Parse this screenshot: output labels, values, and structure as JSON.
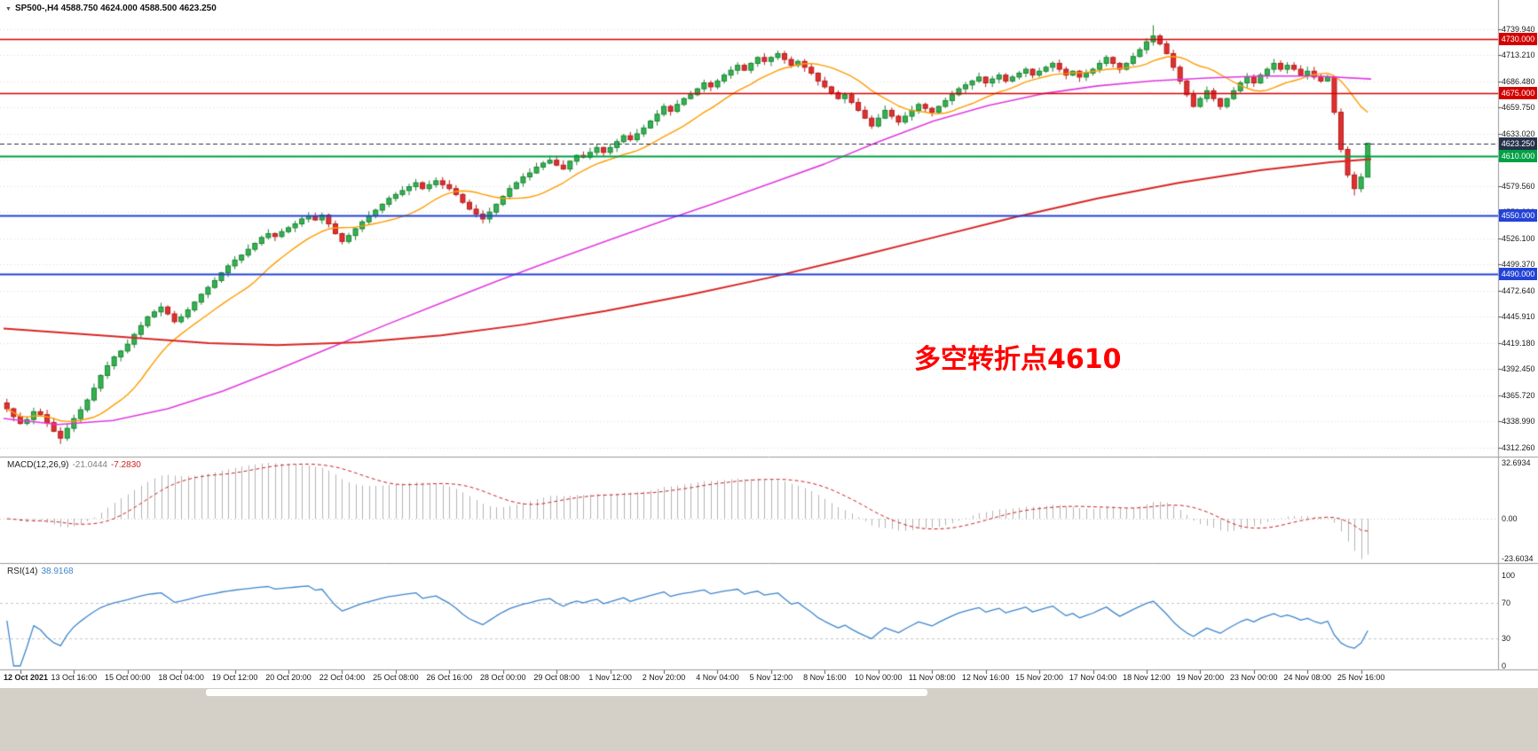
{
  "window": {
    "title_text": "SP500-,H4 4588.750 4624.000 4588.500 4623.250",
    "symbol": "SP500-",
    "timeframe": "H4",
    "ohlc": {
      "open": "4588.750",
      "high": "4624.000",
      "low": "4588.500",
      "close": "4623.250"
    }
  },
  "icons": {
    "dropdown": "▼"
  },
  "annotation": {
    "text": "多空转折点4610",
    "color": "#ff0000"
  },
  "indicators": {
    "macd": {
      "name": "MACD(12,26,9)",
      "value_main": "-21.0444",
      "value_signal": "-7.2830",
      "axis_labels": [
        "32.6934",
        "0.00",
        "-23.6034"
      ]
    },
    "rsi": {
      "name": "RSI(14)",
      "value": "38.9168",
      "axis_labels": [
        "100",
        "70",
        "30",
        "0"
      ]
    }
  },
  "colors": {
    "up_fill": "#33b34e",
    "up_edge": "#1e8238",
    "down_fill": "#e03030",
    "down_edge": "#b31d1d",
    "ma_fast": "#ff9c00",
    "ma_mid": "#e03ae0",
    "ma_slow": "#d92525",
    "macd_hist": "#b4b4b4",
    "macd_signal": "#cc2222",
    "rsi_line": "#3e86cc",
    "grid": "#dcdcdc",
    "separator": "#9a9a9a",
    "axis_text": "#1a1a1a"
  },
  "chart_data": {
    "type": "candlestick",
    "title": "SP500-,H4",
    "panels": [
      "price",
      "MACD",
      "RSI"
    ],
    "last_bar": {
      "open": 4588.75,
      "high": 4624.0,
      "low": 4588.5,
      "close": 4623.25
    },
    "first_open": 4358,
    "closes": [
      4352,
      4344,
      4337,
      4341,
      4349,
      4346,
      4338,
      4329,
      4322,
      4332,
      4342,
      4351,
      4361,
      4373,
      4386,
      4396,
      4405,
      4411,
      4418,
      4428,
      4437,
      4446,
      4451,
      4456,
      4449,
      4441,
      4446,
      4453,
      4461,
      4469,
      4476,
      4483,
      4491,
      4498,
      4504,
      4509,
      4515,
      4521,
      4527,
      4531,
      4528,
      4533,
      4537,
      4541,
      4546,
      4549,
      4545,
      4550,
      4541,
      4531,
      4523,
      4529,
      4536,
      4543,
      4549,
      4555,
      4561,
      4567,
      4571,
      4575,
      4579,
      4583,
      4577,
      4581,
      4585,
      4581,
      4577,
      4571,
      4563,
      4556,
      4551,
      4546,
      4553,
      4561,
      4569,
      4577,
      4583,
      4589,
      4593,
      4599,
      4603,
      4606,
      4601,
      4597,
      4605,
      4611,
      4609,
      4614,
      4619,
      4614,
      4619,
      4625,
      4631,
      4627,
      4633,
      4639,
      4646,
      4653,
      4661,
      4656,
      4663,
      4669,
      4673,
      4679,
      4685,
      4681,
      4687,
      4693,
      4698,
      4703,
      4698,
      4705,
      4711,
      4707,
      4711,
      4715,
      4709,
      4703,
      4707,
      4701,
      4695,
      4687,
      4681,
      4675,
      4669,
      4673,
      4665,
      4657,
      4649,
      4641,
      4649,
      4657,
      4651,
      4645,
      4651,
      4657,
      4663,
      4659,
      4655,
      4661,
      4667,
      4673,
      4679,
      4683,
      4687,
      4691,
      4685,
      4689,
      4693,
      4687,
      4691,
      4695,
      4699,
      4693,
      4697,
      4701,
      4705,
      4699,
      4693,
      4697,
      4691,
      4695,
      4699,
      4705,
      4711,
      4705,
      4699,
      4705,
      4712,
      4719,
      4727,
      4733,
      4725,
      4715,
      4701,
      4687,
      4673,
      4661,
      4669,
      4677,
      4669,
      4661,
      4669,
      4677,
      4685,
      4691,
      4685,
      4693,
      4699,
      4705,
      4699,
      4703,
      4699,
      4693,
      4697,
      4691,
      4687,
      4691,
      4655,
      4617,
      4591,
      4577,
      4588.75,
      4623.25
    ],
    "special_wicks": {
      "8": {
        "low": 4316
      },
      "171": {
        "high": 4744
      },
      "201": {
        "low": 4570
      }
    },
    "ma_fast_period": 13,
    "ma_mid_points": [
      [
        0,
        4342
      ],
      [
        0.04,
        4336
      ],
      [
        0.08,
        4340
      ],
      [
        0.12,
        4352
      ],
      [
        0.16,
        4370
      ],
      [
        0.2,
        4392
      ],
      [
        0.24,
        4415
      ],
      [
        0.28,
        4438
      ],
      [
        0.32,
        4460
      ],
      [
        0.36,
        4482
      ],
      [
        0.4,
        4503
      ],
      [
        0.44,
        4523
      ],
      [
        0.48,
        4543
      ],
      [
        0.52,
        4562
      ],
      [
        0.56,
        4582
      ],
      [
        0.6,
        4602
      ],
      [
        0.64,
        4625
      ],
      [
        0.68,
        4646
      ],
      [
        0.72,
        4662
      ],
      [
        0.76,
        4674
      ],
      [
        0.8,
        4682
      ],
      [
        0.84,
        4687
      ],
      [
        0.88,
        4690
      ],
      [
        0.92,
        4692
      ],
      [
        0.96,
        4692
      ],
      [
        1,
        4689
      ]
    ],
    "ma_slow_points": [
      [
        0,
        4434
      ],
      [
        0.08,
        4426
      ],
      [
        0.15,
        4419
      ],
      [
        0.2,
        4417
      ],
      [
        0.26,
        4420
      ],
      [
        0.32,
        4427
      ],
      [
        0.38,
        4438
      ],
      [
        0.44,
        4452
      ],
      [
        0.5,
        4468
      ],
      [
        0.56,
        4486
      ],
      [
        0.62,
        4506
      ],
      [
        0.68,
        4527
      ],
      [
        0.74,
        4548
      ],
      [
        0.8,
        4567
      ],
      [
        0.86,
        4583
      ],
      [
        0.92,
        4596
      ],
      [
        0.97,
        4604
      ],
      [
        1,
        4607
      ]
    ],
    "hlines": [
      {
        "price": 4730.0,
        "label": "4730.000",
        "color": "#d40000",
        "width": 1.5
      },
      {
        "price": 4675.0,
        "label": "4675.000",
        "color": "#d40000",
        "width": 1.5
      },
      {
        "price": 4623.25,
        "label": "4623.250",
        "color": "#25324a",
        "width": 1,
        "current": true
      },
      {
        "price": 4610.0,
        "label": "4610.000",
        "color": "#00a044",
        "width": 2
      },
      {
        "price": 4550.0,
        "label": "4550.000",
        "color": "#2343d6",
        "width": 2
      },
      {
        "price": 4490.0,
        "label": "4490.000",
        "color": "#2343d6",
        "width": 2
      }
    ],
    "macd": {
      "fast": 12,
      "slow": 26,
      "signal": 9,
      "current": -21.0444,
      "current_signal": -7.283,
      "axis_max": 32.6934,
      "axis_min": -23.6034
    },
    "rsi": {
      "period": 14,
      "current": 38.9168,
      "levels": [
        70,
        30
      ],
      "axis_max": 100,
      "axis_min": 0
    },
    "y_ticks": [
      "4739.940",
      "4713.210",
      "4686.480",
      "4659.750",
      "4633.020",
      "4606.290",
      "4579.560",
      "4552.830",
      "4526.100",
      "4499.370",
      "4472.640",
      "4445.910",
      "4419.180",
      "4392.450",
      "4365.720",
      "4338.990",
      "4312.260"
    ],
    "x_ticks": [
      "12 Oct 2021",
      "13 Oct 16:00",
      "15 Oct 00:00",
      "18 Oct 04:00",
      "19 Oct 12:00",
      "20 Oct 20:00",
      "22 Oct 04:00",
      "25 Oct 08:00",
      "26 Oct 16:00",
      "28 Oct 00:00",
      "29 Oct 08:00",
      "1 Nov 12:00",
      "2 Nov 20:00",
      "4 Nov 04:00",
      "5 Nov 12:00",
      "8 Nov 16:00",
      "10 Nov 00:00",
      "11 Nov 08:00",
      "12 Nov 16:00",
      "15 Nov 20:00",
      "17 Nov 04:00",
      "18 Nov 12:00",
      "19 Nov 20:00",
      "23 Nov 00:00",
      "24 Nov 08:00",
      "25 Nov 16:00"
    ]
  }
}
